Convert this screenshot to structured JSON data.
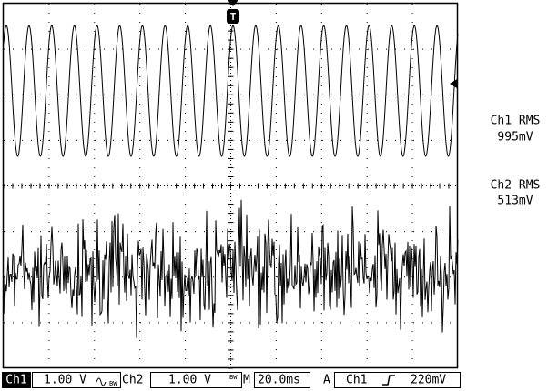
{
  "screen": {
    "trigger_marker": "T",
    "readouts": [
      {
        "label": "Ch1 RMS",
        "value": "995mV"
      },
      {
        "label": "Ch2 RMS",
        "value": "513mV"
      }
    ]
  },
  "status_bar": {
    "ch1_label": "Ch1",
    "ch1_scale": "1.00 V",
    "ch2_label": "Ch2",
    "ch2_scale": "1.00 V",
    "timebase_label": "M",
    "timebase": "20.0ms",
    "trigger_mode": "A",
    "trigger_source": "Ch1",
    "trigger_level": "220mV"
  }
}
